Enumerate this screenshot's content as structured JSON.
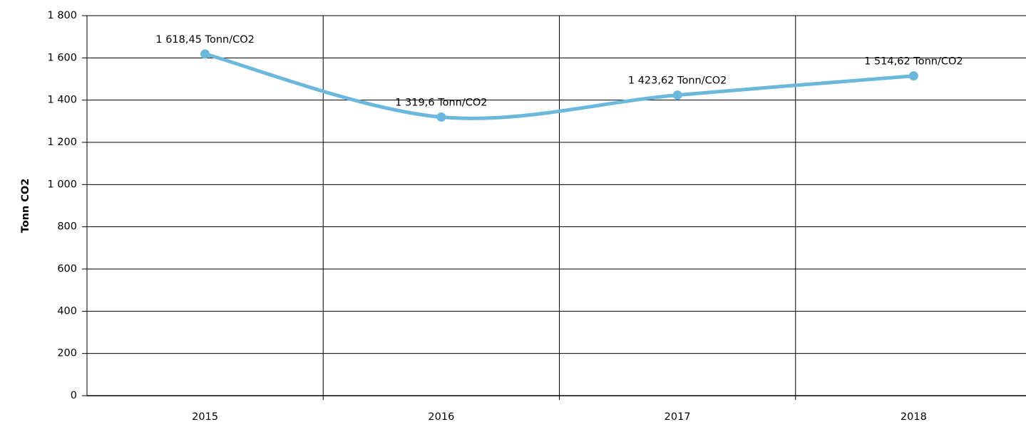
{
  "chart_data": {
    "type": "line",
    "y_axis_label": "Tonn CO2",
    "categories": [
      "2015",
      "2016",
      "2017",
      "2018"
    ],
    "series": [
      {
        "name": "Tonn CO2",
        "color": "#6bb8dc",
        "values": [
          1618.45,
          1319.6,
          1423.62,
          1514.62
        ],
        "value_labels": [
          "1 618,45 Tonn/CO2",
          "1 319,6 Tonn/CO2",
          "1 423,62 Tonn/CO2",
          "1 514,62 Tonn/CO2"
        ]
      }
    ],
    "ylim": [
      0,
      1800
    ],
    "yticks": [
      0,
      200,
      400,
      600,
      800,
      {
        "value": 1000,
        "label": "1 000"
      },
      {
        "value": 1200,
        "label": "1 200"
      },
      {
        "value": 1400,
        "label": "1 400"
      },
      {
        "value": 1600,
        "label": "1 600"
      },
      {
        "value": 1800,
        "label": "1 800"
      }
    ],
    "grid": true,
    "smooth": true
  }
}
